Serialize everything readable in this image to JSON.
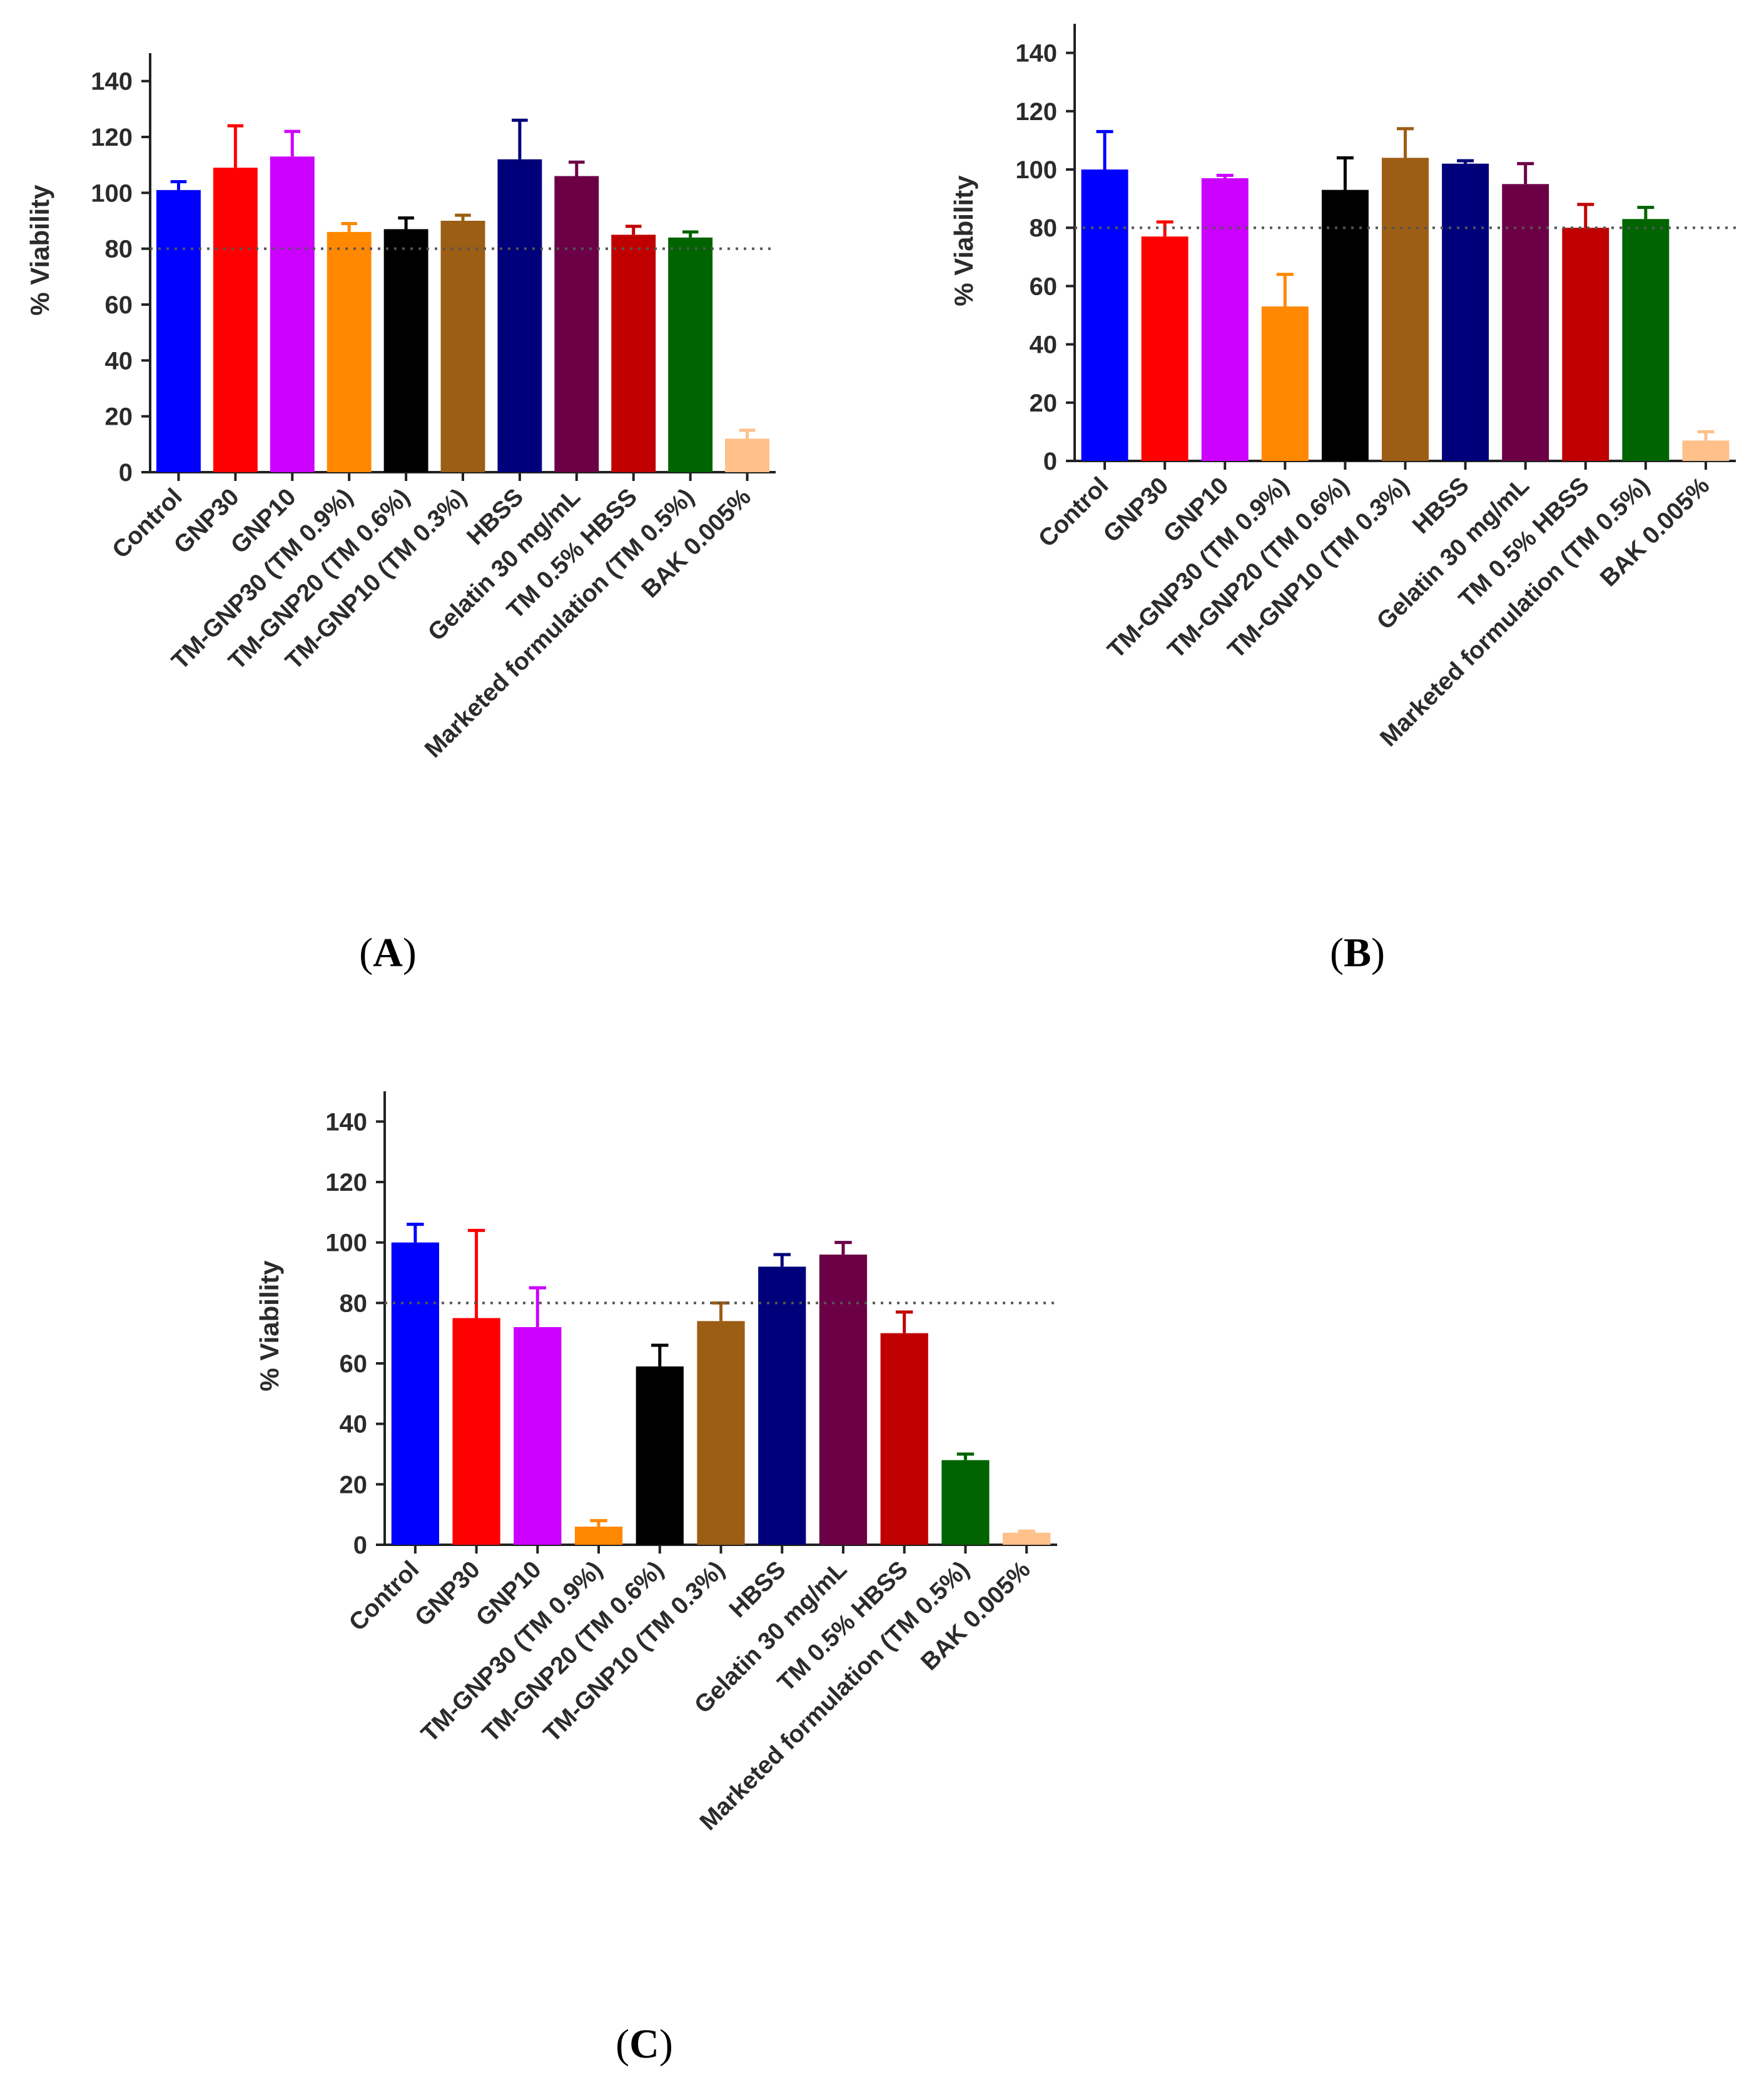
{
  "figure": {
    "y_axis_label": "% Viability",
    "reference_line_value": 80
  },
  "colors": [
    "#0000ff",
    "#ff0000",
    "#cc00ff",
    "#ff8800",
    "#000000",
    "#9c5e14",
    "#00007a",
    "#6c0046",
    "#c00000",
    "#006400",
    "#ffc08a"
  ],
  "chart_data": [
    {
      "type": "bar",
      "panel_label": "A",
      "panel_letter": "A",
      "ylabel": "% Viability",
      "ylim": [
        0,
        150
      ],
      "yticks": [
        0,
        20,
        40,
        60,
        80,
        100,
        120,
        140
      ],
      "reference_line": 80,
      "categories": [
        "Control",
        "GNP30",
        "GNP10",
        "TM-GNP30 (TM 0.9%)",
        "TM-GNP20 (TM 0.6%)",
        "TM-GNP10 (TM 0.3%)",
        "HBSS",
        "Gelatin 30 mg/mL",
        "TM 0.5% HBSS",
        "Marketed formulation (TM 0.5%)",
        "BAK 0.005%"
      ],
      "values": [
        101,
        109,
        113,
        86,
        87,
        90,
        112,
        106,
        85,
        84,
        12
      ],
      "errors": [
        3,
        15,
        9,
        3,
        4,
        2,
        14,
        5,
        3,
        2,
        3
      ]
    },
    {
      "type": "bar",
      "panel_label": "B",
      "panel_letter": "B",
      "ylabel": "% Viability",
      "ylim": [
        0,
        150
      ],
      "yticks": [
        0,
        20,
        40,
        60,
        80,
        100,
        120,
        140
      ],
      "reference_line": 80,
      "categories": [
        "Control",
        "GNP30",
        "GNP10",
        "TM-GNP30 (TM 0.9%)",
        "TM-GNP20 (TM 0.6%)",
        "TM-GNP10 (TM 0.3%)",
        "HBSS",
        "Gelatin 30 mg/mL",
        "TM 0.5% HBSS",
        "Marketed formulation (TM 0.5%)",
        "BAK 0.005%"
      ],
      "values": [
        100,
        77,
        97,
        53,
        93,
        104,
        102,
        95,
        80,
        83,
        7
      ],
      "errors": [
        13,
        5,
        1,
        11,
        11,
        10,
        1,
        7,
        8,
        4,
        3
      ]
    },
    {
      "type": "bar",
      "panel_label": "C",
      "panel_letter": "C",
      "ylabel": "% Viability",
      "ylim": [
        0,
        150
      ],
      "yticks": [
        0,
        20,
        40,
        60,
        80,
        100,
        120,
        140
      ],
      "reference_line": 80,
      "categories": [
        "Control",
        "GNP30",
        "GNP10",
        "TM-GNP30 (TM 0.9%)",
        "TM-GNP20 (TM 0.6%)",
        "TM-GNP10 (TM 0.3%)",
        "HBSS",
        "Gelatin 30 mg/mL",
        "TM 0.5% HBSS",
        "Marketed formulation (TM 0.5%)",
        "BAK 0.005%"
      ],
      "values": [
        100,
        75,
        72,
        6,
        59,
        74,
        92,
        96,
        70,
        28,
        4
      ],
      "errors": [
        6,
        29,
        13,
        2,
        7,
        6,
        4,
        4,
        7,
        2,
        0.5
      ]
    }
  ]
}
